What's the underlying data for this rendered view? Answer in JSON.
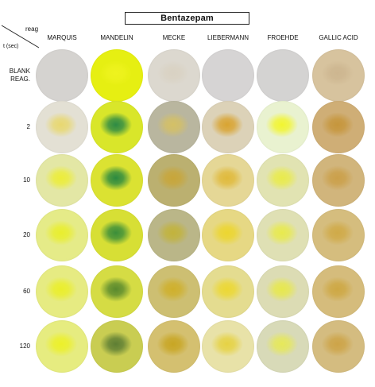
{
  "title": "Bentazepam",
  "corner": {
    "column_header": "reag",
    "row_header": "t (sec)"
  },
  "columns": [
    "MARQUIS",
    "MANDELIN",
    "MECKE",
    "LIEBERMANN",
    "FROEHDE",
    "GALLIC ACID"
  ],
  "rows": [
    {
      "label": "BLANK\nREAG.",
      "swatches": [
        {
          "base": "#d5d3d0",
          "spot": "#d5d3d0"
        },
        {
          "base": "#e6ef12",
          "spot": "#eef31e"
        },
        {
          "base": "#dcd8cf",
          "spot": "#d9d2c3"
        },
        {
          "base": "#d6d4d4",
          "spot": "#d6d4d4"
        },
        {
          "base": "#d4d3d2",
          "spot": "#d4d3d2"
        },
        {
          "base": "#d7c39e",
          "spot": "#cdb690"
        }
      ]
    },
    {
      "label": "2",
      "swatches": [
        {
          "base": "#e3e0d4",
          "spot": "#e8d870"
        },
        {
          "base": "#d9e62a",
          "spot": "#2e8b45"
        },
        {
          "base": "#b9b69f",
          "spot": "#d4c066"
        },
        {
          "base": "#dcd2b8",
          "spot": "#d9a431"
        },
        {
          "base": "#e9f2d0",
          "spot": "#f2f530"
        },
        {
          "base": "#cfae76",
          "spot": "#c6963c"
        }
      ]
    },
    {
      "label": "10",
      "swatches": [
        {
          "base": "#e3e7a5",
          "spot": "#eced3a"
        },
        {
          "base": "#dbe232",
          "spot": "#2c8a40"
        },
        {
          "base": "#bbb070",
          "spot": "#c8a63a"
        },
        {
          "base": "#e5d796",
          "spot": "#e0ba3c"
        },
        {
          "base": "#e1e3b2",
          "spot": "#e9eb4c"
        },
        {
          "base": "#d1b57c",
          "spot": "#cba04a"
        }
      ]
    },
    {
      "label": "20",
      "swatches": [
        {
          "base": "#e5eb88",
          "spot": "#e9ee2e"
        },
        {
          "base": "#d7df35",
          "spot": "#3b8e3a"
        },
        {
          "base": "#bab688",
          "spot": "#c2b33c"
        },
        {
          "base": "#e6d884",
          "spot": "#ecd630"
        },
        {
          "base": "#dfe0b4",
          "spot": "#e8ea4e"
        },
        {
          "base": "#d5bd7e",
          "spot": "#d0aa48"
        }
      ]
    },
    {
      "label": "60",
      "swatches": [
        {
          "base": "#e6eb82",
          "spot": "#eaee2c"
        },
        {
          "base": "#d5dc44",
          "spot": "#5a8a2e"
        },
        {
          "base": "#cdbf72",
          "spot": "#cfb02c"
        },
        {
          "base": "#e4dc90",
          "spot": "#ecd834"
        },
        {
          "base": "#dcdcb4",
          "spot": "#e7e84e"
        },
        {
          "base": "#d5bc7c",
          "spot": "#cea844"
        }
      ]
    },
    {
      "label": "120",
      "swatches": [
        {
          "base": "#e6ec80",
          "spot": "#ecf02a"
        },
        {
          "base": "#c9cd52",
          "spot": "#5e7e34"
        },
        {
          "base": "#d4c070",
          "spot": "#c8a624"
        },
        {
          "base": "#e8e2a8",
          "spot": "#e6d244"
        },
        {
          "base": "#d8dab8",
          "spot": "#e6e85a"
        },
        {
          "base": "#d4bc80",
          "spot": "#cda448"
        }
      ]
    }
  ]
}
